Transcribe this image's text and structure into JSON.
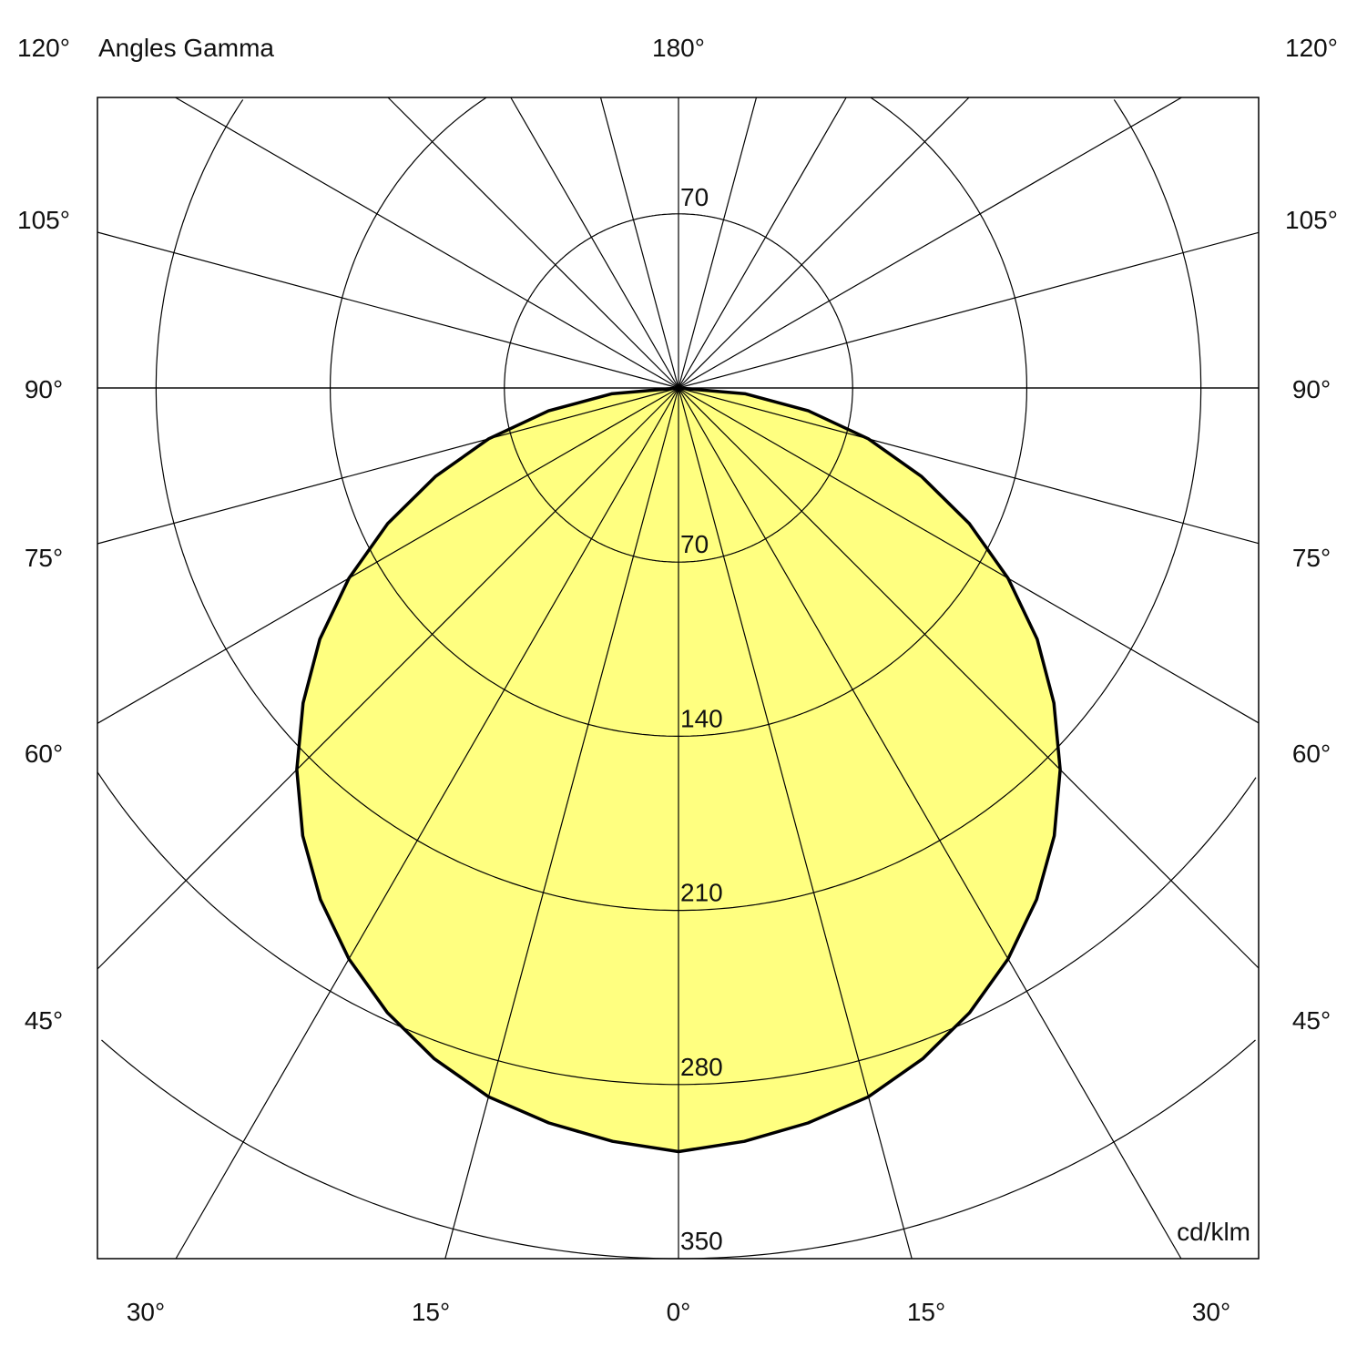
{
  "chart_data": {
    "type": "polar",
    "title": "Angles Gamma",
    "unit": "cd/klm",
    "top_label": "180°",
    "side_labels": [
      "120°",
      "105°",
      "90°",
      "75°",
      "60°",
      "45°"
    ],
    "bottom_labels": [
      "30°",
      "15°",
      "0°",
      "15°",
      "30°"
    ],
    "rings": [
      70,
      140,
      210,
      280,
      350
    ],
    "upper_ring_label": "70",
    "radial_line_step_deg": 15,
    "range_max": 350,
    "fill_color": "#ffff80",
    "curve_color": "#000000",
    "series": [
      {
        "gamma": [
          0,
          5,
          10,
          15,
          20,
          25,
          30,
          35,
          40,
          45,
          50,
          55,
          60,
          65,
          70,
          75,
          80,
          85,
          90
        ],
        "values": [
          307,
          304,
          300,
          295,
          287,
          277,
          265,
          251,
          235,
          217,
          197,
          176,
          153,
          129,
          104,
          79,
          53,
          27,
          0
        ]
      }
    ]
  }
}
